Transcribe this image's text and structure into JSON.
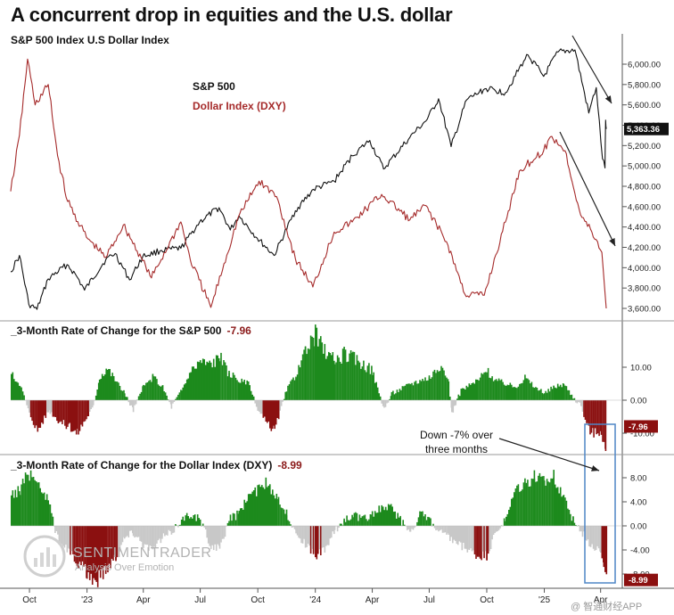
{
  "title": "A concurrent drop in equities and the U.S. dollar",
  "panel1": {
    "header": "S&P 500 Index  U.S Dollar Index",
    "legend": [
      {
        "label": "S&P 500",
        "color": "#111111"
      },
      {
        "label": "Dollar Index (DXY)",
        "color": "#a52a2a"
      }
    ],
    "current_label": "5,363.36"
  },
  "panel2": {
    "title": "_3-Month Rate of Change for the S&P 500",
    "value": "-7.96"
  },
  "panel3": {
    "title": "_3-Month Rate of Change for the Dollar Index (DXY)",
    "value": "-8.99"
  },
  "annotation": {
    "line1": "Down -7% over",
    "line2": "three months"
  },
  "watermark": {
    "brand": "SENTIMENTRADER",
    "tagline": "Analysis Over Emotion"
  },
  "source_mark": "@ 智通财经APP",
  "colors": {
    "positive": "#1d8a1d",
    "negative": "#8b1010",
    "neutral": "#c8c8c8",
    "sp_line": "#111111",
    "dxy_line": "#a52a2a",
    "highlight_box": "#4f86c6"
  },
  "chart_data": [
    {
      "type": "line",
      "title": "S&P 500 Index  U.S Dollar Index",
      "y_axis_side": "right",
      "ylim": [
        3550,
        6150
      ],
      "yticks": [
        "6,000.00",
        "5,800.00",
        "5,600.00",
        "5,400.00",
        "5,200.00",
        "5,000.00",
        "4,800.00",
        "4,600.00",
        "4,400.00",
        "4,200.00",
        "4,000.00",
        "3,800.00",
        "3,600.00"
      ],
      "ytick_values": [
        6000,
        5800,
        5600,
        5400,
        5200,
        5000,
        4800,
        4600,
        4400,
        4200,
        4000,
        3800,
        3600
      ],
      "x_range": [
        "2022-09-01",
        "2025-04-10"
      ],
      "x_ticks": [
        "Oct",
        "'23",
        "Apr",
        "Jul",
        "Oct",
        "'24",
        "Apr",
        "Jul",
        "Oct",
        "'25",
        "Apr"
      ],
      "x_tick_dates": [
        "2022-10-01",
        "2023-01-01",
        "2023-04-01",
        "2023-07-01",
        "2023-10-01",
        "2024-01-01",
        "2024-04-01",
        "2024-07-01",
        "2024-10-01",
        "2025-01-01",
        "2025-04-01"
      ],
      "series": [
        {
          "name": "S&P 500",
          "color": "#111111",
          "points": [
            [
              "2022-09-01",
              3960
            ],
            [
              "2022-09-15",
              4120
            ],
            [
              "2022-09-30",
              3640
            ],
            [
              "2022-10-13",
              3590
            ],
            [
              "2022-10-31",
              3890
            ],
            [
              "2022-11-30",
              4030
            ],
            [
              "2022-12-15",
              3920
            ],
            [
              "2022-12-28",
              3780
            ],
            [
              "2023-01-31",
              4080
            ],
            [
              "2023-02-15",
              4140
            ],
            [
              "2023-03-10",
              3880
            ],
            [
              "2023-03-31",
              4110
            ],
            [
              "2023-04-30",
              4170
            ],
            [
              "2023-05-31",
              4190
            ],
            [
              "2023-06-30",
              4450
            ],
            [
              "2023-07-31",
              4590
            ],
            [
              "2023-08-18",
              4370
            ],
            [
              "2023-09-01",
              4510
            ],
            [
              "2023-09-30",
              4290
            ],
            [
              "2023-10-27",
              4120
            ],
            [
              "2023-11-30",
              4560
            ],
            [
              "2023-12-29",
              4770
            ],
            [
              "2024-01-31",
              4850
            ],
            [
              "2024-02-29",
              5100
            ],
            [
              "2024-03-28",
              5250
            ],
            [
              "2024-04-19",
              4970
            ],
            [
              "2024-05-31",
              5280
            ],
            [
              "2024-06-28",
              5460
            ],
            [
              "2024-07-16",
              5660
            ],
            [
              "2024-08-05",
              5190
            ],
            [
              "2024-08-30",
              5650
            ],
            [
              "2024-09-30",
              5760
            ],
            [
              "2024-10-31",
              5720
            ],
            [
              "2024-11-29",
              6030
            ],
            [
              "2024-12-06",
              6090
            ],
            [
              "2024-12-31",
              5880
            ],
            [
              "2025-01-23",
              6120
            ],
            [
              "2025-02-19",
              6140
            ],
            [
              "2025-03-13",
              5520
            ],
            [
              "2025-03-25",
              5770
            ],
            [
              "2025-04-04",
              5070
            ],
            [
              "2025-04-08",
              4980
            ],
            [
              "2025-04-09",
              5450
            ],
            [
              "2025-04-10",
              5363
            ]
          ]
        },
        {
          "name": "Dollar Index (DXY)",
          "color": "#a52a2a",
          "points": [
            [
              "2022-09-01",
              4750
            ],
            [
              "2022-09-15",
              5300
            ],
            [
              "2022-09-28",
              6050
            ],
            [
              "2022-10-10",
              5600
            ],
            [
              "2022-10-31",
              5800
            ],
            [
              "2022-11-15",
              5100
            ],
            [
              "2022-12-01",
              4650
            ],
            [
              "2022-12-31",
              4300
            ],
            [
              "2023-01-31",
              4100
            ],
            [
              "2023-02-28",
              4420
            ],
            [
              "2023-03-31",
              4070
            ],
            [
              "2023-04-14",
              3900
            ],
            [
              "2023-05-31",
              4450
            ],
            [
              "2023-06-15",
              4080
            ],
            [
              "2023-07-18",
              3610
            ],
            [
              "2023-08-31",
              4500
            ],
            [
              "2023-10-03",
              4850
            ],
            [
              "2023-10-31",
              4700
            ],
            [
              "2023-11-30",
              4090
            ],
            [
              "2023-12-28",
              3810
            ],
            [
              "2024-01-31",
              4350
            ],
            [
              "2024-02-29",
              4450
            ],
            [
              "2024-04-16",
              4720
            ],
            [
              "2024-05-31",
              4470
            ],
            [
              "2024-06-26",
              4610
            ],
            [
              "2024-07-31",
              4220
            ],
            [
              "2024-08-27",
              3740
            ],
            [
              "2024-09-27",
              3730
            ],
            [
              "2024-10-31",
              4450
            ],
            [
              "2024-11-22",
              4950
            ],
            [
              "2024-12-31",
              5150
            ],
            [
              "2025-01-13",
              5290
            ],
            [
              "2025-02-03",
              5150
            ],
            [
              "2025-02-28",
              4520
            ],
            [
              "2025-03-18",
              4350
            ],
            [
              "2025-04-03",
              4150
            ],
            [
              "2025-04-10",
              3600
            ]
          ]
        }
      ]
    },
    {
      "type": "bar",
      "title": "_3-Month Rate of Change for the S&P 500",
      "ylim": [
        -15,
        20
      ],
      "yticks": [
        "10.00",
        "0.00",
        "-10.00"
      ],
      "ytick_values": [
        10,
        0,
        -10
      ],
      "current_value": -7.96,
      "series": [
        {
          "points": [
            [
              "2022-09-01",
              8
            ],
            [
              "2022-09-15",
              5
            ],
            [
              "2022-09-30",
              -4
            ],
            [
              "2022-10-13",
              -9
            ],
            [
              "2022-10-31",
              -3
            ],
            [
              "2022-11-15",
              -6
            ],
            [
              "2022-12-01",
              -8
            ],
            [
              "2022-12-15",
              -10
            ],
            [
              "2022-12-31",
              -5
            ],
            [
              "2023-01-10",
              -2
            ],
            [
              "2023-01-20",
              7
            ],
            [
              "2023-02-01",
              10
            ],
            [
              "2023-02-15",
              6
            ],
            [
              "2023-03-01",
              2
            ],
            [
              "2023-03-15",
              -3
            ],
            [
              "2023-03-31",
              4
            ],
            [
              "2023-04-15",
              7
            ],
            [
              "2023-05-01",
              4
            ],
            [
              "2023-05-15",
              -2
            ],
            [
              "2023-05-31",
              3
            ],
            [
              "2023-06-15",
              9
            ],
            [
              "2023-06-30",
              12
            ],
            [
              "2023-07-15",
              11
            ],
            [
              "2023-07-31",
              13
            ],
            [
              "2023-08-15",
              8
            ],
            [
              "2023-08-31",
              6
            ],
            [
              "2023-09-15",
              5
            ],
            [
              "2023-09-30",
              -3
            ],
            [
              "2023-10-15",
              -7
            ],
            [
              "2023-10-27",
              -9
            ],
            [
              "2023-11-15",
              3
            ],
            [
              "2023-11-30",
              8
            ],
            [
              "2023-12-15",
              14
            ],
            [
              "2023-12-31",
              20
            ],
            [
              "2024-01-15",
              15
            ],
            [
              "2024-01-31",
              12
            ],
            [
              "2024-02-15",
              14
            ],
            [
              "2024-02-29",
              13
            ],
            [
              "2024-03-15",
              11
            ],
            [
              "2024-03-31",
              9
            ],
            [
              "2024-04-19",
              -3
            ],
            [
              "2024-05-01",
              2
            ],
            [
              "2024-05-31",
              5
            ],
            [
              "2024-06-15",
              6
            ],
            [
              "2024-06-30",
              7
            ],
            [
              "2024-07-15",
              10
            ],
            [
              "2024-07-31",
              6
            ],
            [
              "2024-08-05",
              -4
            ],
            [
              "2024-08-20",
              3
            ],
            [
              "2024-09-15",
              6
            ],
            [
              "2024-09-30",
              9
            ],
            [
              "2024-10-15",
              6
            ],
            [
              "2024-10-31",
              5
            ],
            [
              "2024-11-15",
              4
            ],
            [
              "2024-11-30",
              7
            ],
            [
              "2024-12-15",
              4
            ],
            [
              "2024-12-31",
              2
            ],
            [
              "2025-01-15",
              4
            ],
            [
              "2025-01-31",
              5
            ],
            [
              "2025-02-15",
              1
            ],
            [
              "2025-02-28",
              -2
            ],
            [
              "2025-03-10",
              -8
            ],
            [
              "2025-03-20",
              -10
            ],
            [
              "2025-04-01",
              -9
            ],
            [
              "2025-04-08",
              -16
            ],
            [
              "2025-04-10",
              -8
            ]
          ]
        }
      ]
    },
    {
      "type": "bar",
      "title": "_3-Month Rate of Change for the Dollar Index (DXY)",
      "ylim": [
        -10.5,
        10.5
      ],
      "yticks": [
        "8.00",
        "4.00",
        "0.00",
        "-4.00",
        "-8.00"
      ],
      "ytick_values": [
        8,
        4,
        0,
        -4,
        -8
      ],
      "current_value": -8.99,
      "series": [
        {
          "points": [
            [
              "2022-09-01",
              5
            ],
            [
              "2022-09-15",
              6
            ],
            [
              "2022-09-30",
              9
            ],
            [
              "2022-10-15",
              7
            ],
            [
              "2022-10-31",
              4
            ],
            [
              "2022-11-10",
              -1
            ],
            [
              "2022-11-30",
              -4
            ],
            [
              "2022-12-15",
              -6
            ],
            [
              "2022-12-31",
              -8
            ],
            [
              "2023-01-15",
              -9
            ],
            [
              "2023-01-31",
              -7
            ],
            [
              "2023-02-15",
              -5
            ],
            [
              "2023-03-01",
              -2
            ],
            [
              "2023-03-15",
              -1
            ],
            [
              "2023-03-31",
              -3
            ],
            [
              "2023-04-15",
              -4
            ],
            [
              "2023-04-30",
              -2
            ],
            [
              "2023-05-15",
              -1
            ],
            [
              "2023-05-31",
              1
            ],
            [
              "2023-06-15",
              2
            ],
            [
              "2023-06-30",
              1
            ],
            [
              "2023-07-15",
              -3
            ],
            [
              "2023-07-31",
              -4
            ],
            [
              "2023-08-15",
              1
            ],
            [
              "2023-08-31",
              2
            ],
            [
              "2023-09-15",
              5
            ],
            [
              "2023-09-30",
              6
            ],
            [
              "2023-10-15",
              7
            ],
            [
              "2023-10-31",
              5
            ],
            [
              "2023-11-15",
              2
            ],
            [
              "2023-11-30",
              -1
            ],
            [
              "2023-12-15",
              -3
            ],
            [
              "2023-12-31",
              -5
            ],
            [
              "2024-01-15",
              -4
            ],
            [
              "2024-01-31",
              -1
            ],
            [
              "2024-02-15",
              1
            ],
            [
              "2024-02-29",
              2
            ],
            [
              "2024-03-15",
              1
            ],
            [
              "2024-03-31",
              2
            ],
            [
              "2024-04-15",
              3
            ],
            [
              "2024-04-30",
              3
            ],
            [
              "2024-05-15",
              1
            ],
            [
              "2024-05-31",
              -1
            ],
            [
              "2024-06-15",
              2
            ],
            [
              "2024-06-30",
              1
            ],
            [
              "2024-07-15",
              -1
            ],
            [
              "2024-07-31",
              -2
            ],
            [
              "2024-08-15",
              -3
            ],
            [
              "2024-08-31",
              -4
            ],
            [
              "2024-09-15",
              -5
            ],
            [
              "2024-09-30",
              -5
            ],
            [
              "2024-10-15",
              -1
            ],
            [
              "2024-10-31",
              1
            ],
            [
              "2024-11-15",
              6
            ],
            [
              "2024-11-30",
              7
            ],
            [
              "2024-12-15",
              8
            ],
            [
              "2024-12-31",
              7
            ],
            [
              "2025-01-15",
              8
            ],
            [
              "2025-01-31",
              5
            ],
            [
              "2025-02-15",
              1
            ],
            [
              "2025-02-28",
              -1
            ],
            [
              "2025-03-15",
              -3
            ],
            [
              "2025-03-31",
              -4
            ],
            [
              "2025-04-05",
              -6
            ],
            [
              "2025-04-10",
              -9
            ]
          ]
        }
      ]
    }
  ]
}
